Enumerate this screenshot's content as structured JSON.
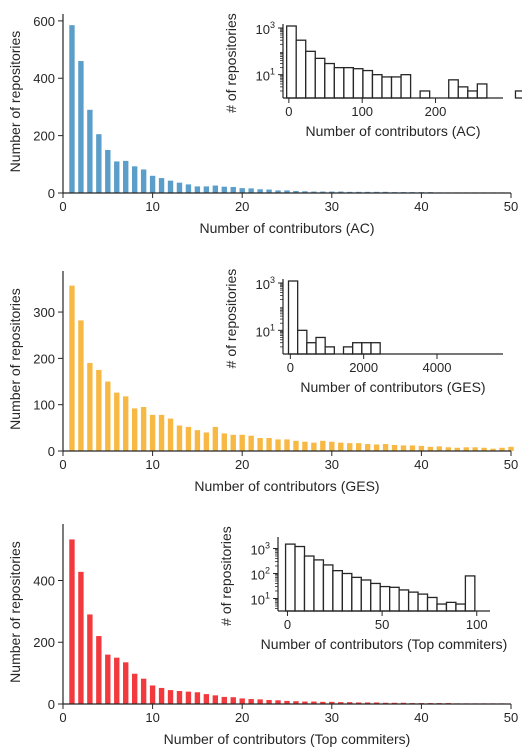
{
  "chart_data": [
    {
      "type": "bar",
      "color": "#5b9ec9",
      "xlabel": "Number of contributors (AC)",
      "ylabel": "Number of repositories",
      "xlim": [
        0,
        50
      ],
      "ylim": [
        0,
        610
      ],
      "xticks": [
        "0",
        "10",
        "20",
        "30",
        "40",
        "50"
      ],
      "yticks": [
        "0",
        "200",
        "400",
        "600"
      ],
      "x": [
        1,
        2,
        3,
        4,
        5,
        6,
        7,
        8,
        9,
        10,
        11,
        12,
        13,
        14,
        15,
        16,
        17,
        18,
        19,
        20,
        21,
        22,
        23,
        24,
        25,
        26,
        27,
        28,
        29,
        30,
        31,
        32,
        33,
        34,
        35,
        36,
        37,
        38,
        39,
        40,
        41,
        42,
        43,
        44,
        45,
        46,
        47,
        48,
        49
      ],
      "values": [
        585,
        460,
        290,
        205,
        150,
        110,
        112,
        93,
        82,
        60,
        52,
        43,
        36,
        30,
        23,
        23,
        26,
        22,
        21,
        17,
        16,
        13,
        12,
        9,
        9,
        7,
        6,
        5,
        5,
        5,
        5,
        4,
        4,
        4,
        4,
        4,
        3,
        3,
        3,
        3,
        3,
        2,
        2,
        2,
        2,
        2,
        2,
        2,
        2
      ],
      "inset": {
        "type": "histogram",
        "scale": "log",
        "xlabel": "Number of contributors (AC)",
        "ylabel": "# of repositories",
        "xlim": [
          -8,
          292
        ],
        "xticks": [
          "0",
          "100",
          "200"
        ],
        "yticks": [
          "10^3",
          "10^1"
        ],
        "yminor_exp": [
          0,
          3
        ],
        "bin_start": -3,
        "bin_width": 13,
        "counts": [
          2000,
          300,
          100,
          50,
          30,
          20,
          20,
          18,
          15,
          10,
          8,
          8,
          10,
          1,
          2,
          1,
          1,
          6,
          3,
          2,
          4,
          1,
          1,
          1,
          2
        ]
      }
    },
    {
      "type": "bar",
      "color": "#f7b944",
      "xlabel": "Number of contributors (GES)",
      "ylabel": "Number of repositories",
      "xlim": [
        0,
        50
      ],
      "ylim": [
        0,
        380
      ],
      "xticks": [
        "0",
        "10",
        "20",
        "30",
        "40",
        "50"
      ],
      "yticks": [
        "0",
        "100",
        "200",
        "300"
      ],
      "x": [
        1,
        2,
        3,
        4,
        5,
        6,
        7,
        8,
        9,
        10,
        11,
        12,
        13,
        14,
        15,
        16,
        17,
        18,
        19,
        20,
        21,
        22,
        23,
        24,
        25,
        26,
        27,
        28,
        29,
        30,
        31,
        32,
        33,
        34,
        35,
        36,
        37,
        38,
        39,
        40,
        41,
        42,
        43,
        44,
        45,
        46,
        47,
        48,
        49,
        50
      ],
      "values": [
        357,
        282,
        190,
        175,
        150,
        126,
        118,
        92,
        95,
        78,
        78,
        70,
        55,
        52,
        45,
        40,
        52,
        38,
        35,
        35,
        33,
        28,
        28,
        25,
        25,
        22,
        20,
        18,
        22,
        20,
        18,
        17,
        17,
        15,
        14,
        15,
        13,
        12,
        12,
        11,
        9,
        10,
        8,
        7,
        8,
        8,
        7,
        5,
        7,
        9
      ],
      "inset": {
        "type": "histogram",
        "scale": "log",
        "xlabel": "Number of contributors (GES)",
        "ylabel": "# of repositories",
        "xlim": [
          -200,
          5800
        ],
        "xticks": [
          "0",
          "2000",
          "4000"
        ],
        "yticks": [
          "10^3",
          "10^1"
        ],
        "yminor_exp": [
          0,
          3
        ],
        "bin_start": -50,
        "bin_width": 250,
        "counts": [
          2000,
          10,
          3,
          5,
          2,
          1,
          2,
          3,
          3,
          3,
          0,
          0,
          0,
          0,
          0,
          0,
          0,
          0,
          0,
          0,
          0,
          0,
          1
        ]
      }
    },
    {
      "type": "bar",
      "color": "#f2393d",
      "xlabel": "Number of contributors (Top commiters)",
      "ylabel": "Number of repositories",
      "xlim": [
        0,
        50
      ],
      "ylim": [
        0,
        570
      ],
      "xticks": [
        "0",
        "10",
        "20",
        "30",
        "40",
        "50"
      ],
      "yticks": [
        "0",
        "200",
        "400"
      ],
      "x": [
        1,
        2,
        3,
        4,
        5,
        6,
        7,
        8,
        9,
        10,
        11,
        12,
        13,
        14,
        15,
        16,
        17,
        18,
        19,
        20,
        21,
        22,
        23,
        24,
        25,
        26,
        27,
        28,
        29,
        30,
        31,
        32,
        33,
        34,
        35,
        36,
        37,
        38,
        39,
        40,
        41,
        42,
        43,
        44,
        45,
        46,
        47,
        48,
        49
      ],
      "values": [
        533,
        428,
        290,
        220,
        160,
        150,
        135,
        98,
        82,
        60,
        52,
        45,
        42,
        40,
        38,
        32,
        28,
        23,
        22,
        18,
        16,
        15,
        13,
        12,
        10,
        9,
        8,
        8,
        7,
        7,
        6,
        6,
        5,
        5,
        5,
        4,
        4,
        4,
        3,
        3,
        3,
        3,
        3,
        2,
        2,
        2,
        2,
        2,
        2
      ],
      "inset": {
        "type": "histogram",
        "scale": "log",
        "xlabel": "Number of contributors (Top commiters)",
        "ylabel": "# of repositories",
        "xlim": [
          -5,
          107
        ],
        "xticks": [
          "0",
          "50",
          "100"
        ],
        "yticks": [
          "10^1",
          "10^2",
          "10^3"
        ],
        "yminor_exp": [
          0.5,
          3.3
        ],
        "bin_start": -1,
        "bin_width": 5,
        "counts": [
          1500,
          1200,
          500,
          350,
          220,
          130,
          100,
          70,
          55,
          40,
          30,
          28,
          22,
          18,
          15,
          11,
          6,
          7,
          6,
          80
        ]
      }
    }
  ]
}
